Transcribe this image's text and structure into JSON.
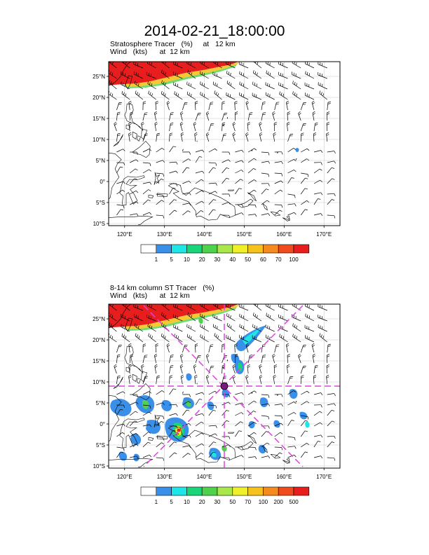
{
  "title": "2014-02-21_18:00:00",
  "panels": [
    {
      "field_label": "Stratosphere Tracer   (%)     at   12 km",
      "wind_label": "Wind   (kts)      at  12 km",
      "lat_ticks": [
        "25°N",
        "20°N",
        "15°N",
        "10°N",
        "5°N",
        "0°",
        "5°S",
        "10°S"
      ],
      "lon_ticks": [
        "120°E",
        "130°E",
        "140°E",
        "150°E",
        "160°E",
        "170°E"
      ],
      "colorbar_labels": [
        "1",
        "5",
        "10",
        "20",
        "30",
        "40",
        "50",
        "60",
        "70",
        "100"
      ],
      "colorbar_colors": [
        "#ffffff",
        "#3a8fe8",
        "#1ee6e6",
        "#1ad47a",
        "#4ed24e",
        "#a8e84a",
        "#f0f028",
        "#f5c21e",
        "#f58a1e",
        "#f04a1e",
        "#e81e1e"
      ]
    },
    {
      "field_label": "8-14 km column ST Tracer   (%)",
      "wind_label": "Wind   (kts)      at  12 km",
      "lat_ticks": [
        "25°N",
        "20°N",
        "15°N",
        "10°N",
        "5°N",
        "0°",
        "5°S",
        "10°S"
      ],
      "lon_ticks": [
        "120°E",
        "130°E",
        "140°E",
        "150°E",
        "160°E",
        "170°E"
      ],
      "colorbar_labels": [
        "1",
        "5",
        "10",
        "20",
        "30",
        "50",
        "70",
        "100",
        "200",
        "500"
      ],
      "colorbar_colors": [
        "#ffffff",
        "#3a8fe8",
        "#1ee6e6",
        "#1ad47a",
        "#4ed24e",
        "#a8e84a",
        "#f0f028",
        "#f5c21e",
        "#f58a1e",
        "#f04a1e",
        "#e81e1e"
      ]
    }
  ],
  "map_extent": {
    "lon_range": [
      116,
      174
    ],
    "lat_range": [
      -10.5,
      28.5
    ]
  },
  "marker_center": {
    "lon": 145.5,
    "lat": 10
  },
  "colors": {
    "guide_lines": "#e040e0",
    "tracer_high": "#e81e1e",
    "coast": "#000000",
    "grid": "#c8c8c8"
  }
}
